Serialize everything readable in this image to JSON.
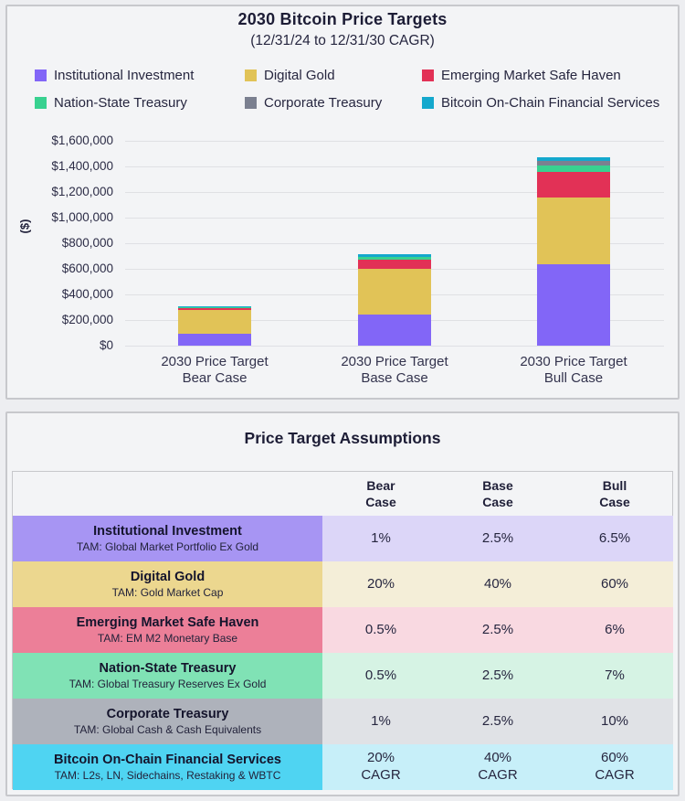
{
  "colors": {
    "purple": "#8266f7",
    "gold": "#e1c357",
    "crimson": "#e23156",
    "green": "#38d190",
    "gray": "#7b8090",
    "cyan": "#14a8cd",
    "purple_label": "#a795f3",
    "purple_cell": "#dcd6f8",
    "gold_label": "#ecd78f",
    "gold_cell": "#f4eed8",
    "crimson_label": "#ec7f98",
    "crimson_cell": "#f9d9e1",
    "green_label": "#80e2b5",
    "green_cell": "#d6f3e4",
    "gray_label": "#aeb2bb",
    "gray_cell": "#e0e2e6",
    "cyan_label": "#4fd4f2",
    "cyan_cell": "#c7eff9"
  },
  "chart": {
    "title": "2030 Bitcoin Price Targets",
    "subtitle": "(12/31/24 to 12/31/30 CAGR)",
    "y_axis_label": "($)",
    "y_ticks": [
      "$1,600,000",
      "$1,400,000",
      "$1,200,000",
      "$1,000,000",
      "$800,000",
      "$600,000",
      "$400,000",
      "$200,000",
      "$0"
    ],
    "legend": [
      {
        "label": "Institutional Investment",
        "color_key": "purple"
      },
      {
        "label": "Digital Gold",
        "color_key": "gold"
      },
      {
        "label": "Emerging Market Safe Haven",
        "color_key": "crimson"
      },
      {
        "label": "Nation-State Treasury",
        "color_key": "green"
      },
      {
        "label": "Corporate Treasury",
        "color_key": "gray"
      },
      {
        "label": "Bitcoin On-Chain Financial Services",
        "color_key": "cyan"
      }
    ]
  },
  "chart_data": {
    "type": "bar",
    "stacked": true,
    "title": "2030 Bitcoin Price Targets",
    "subtitle": "(12/31/24 to 12/31/30 CAGR)",
    "xlabel": "",
    "ylabel": "($)",
    "ylim": [
      0,
      1600000
    ],
    "ytick_values": [
      0,
      200000,
      400000,
      600000,
      800000,
      1000000,
      1200000,
      1400000,
      1600000
    ],
    "grid": true,
    "legend_position": "top",
    "categories": [
      "2030 Price Target Bear Case",
      "2030 Price Target Base Case",
      "2030 Price Target Bull Case"
    ],
    "category_lines": [
      [
        "2030 Price Target",
        "Bear Case"
      ],
      [
        "2030 Price Target",
        "Base Case"
      ],
      [
        "2030 Price Target",
        "Bull Case"
      ]
    ],
    "series": [
      {
        "name": "Institutional Investment",
        "color_key": "purple",
        "values": [
          95000,
          245000,
          635000
        ]
      },
      {
        "name": "Digital Gold",
        "color_key": "gold",
        "values": [
          185000,
          355000,
          525000
        ]
      },
      {
        "name": "Emerging Market Safe Haven",
        "color_key": "crimson",
        "values": [
          15000,
          75000,
          195000
        ]
      },
      {
        "name": "Nation-State Treasury",
        "color_key": "green",
        "values": [
          3000,
          15000,
          52000
        ]
      },
      {
        "name": "Corporate Treasury",
        "color_key": "gray",
        "values": [
          2000,
          5000,
          33000
        ]
      },
      {
        "name": "Bitcoin On-Chain Financial Services",
        "color_key": "cyan",
        "values": [
          8000,
          17000,
          34000
        ]
      }
    ],
    "stack_totals_approx": [
      308000,
      712000,
      1474000
    ]
  },
  "table": {
    "title": "Price Target Assumptions",
    "col_headers": [
      {
        "line1": "Bear",
        "line2": "Case"
      },
      {
        "line1": "Base",
        "line2": "Case"
      },
      {
        "line1": "Bull",
        "line2": "Case"
      }
    ],
    "rows": [
      {
        "title": "Institutional Investment",
        "tam": "TAM: Global Market Portfolio Ex Gold",
        "bear": "1%",
        "base": "2.5%",
        "bull": "6.5%",
        "color_key": "purple"
      },
      {
        "title": "Digital Gold",
        "tam": "TAM: Gold Market Cap",
        "bear": "20%",
        "base": "40%",
        "bull": "60%",
        "color_key": "gold"
      },
      {
        "title": "Emerging Market Safe Haven",
        "tam": "TAM: EM M2 Monetary Base",
        "bear": "0.5%",
        "base": "2.5%",
        "bull": "6%",
        "color_key": "crimson"
      },
      {
        "title": "Nation-State Treasury",
        "tam": "TAM: Global Treasury Reserves Ex Gold",
        "bear": "0.5%",
        "base": "2.5%",
        "bull": "7%",
        "color_key": "green"
      },
      {
        "title": "Corporate Treasury",
        "tam": "TAM: Global Cash & Cash Equivalents",
        "bear": "1%",
        "base": "2.5%",
        "bull": "10%",
        "color_key": "gray"
      },
      {
        "title": "Bitcoin On-Chain Financial Services",
        "tam": "TAM: L2s, LN, Sidechains, Restaking & WBTC",
        "bear": "20%",
        "base": "40%",
        "bull": "60%",
        "unit": "CAGR",
        "color_key": "cyan"
      }
    ]
  }
}
